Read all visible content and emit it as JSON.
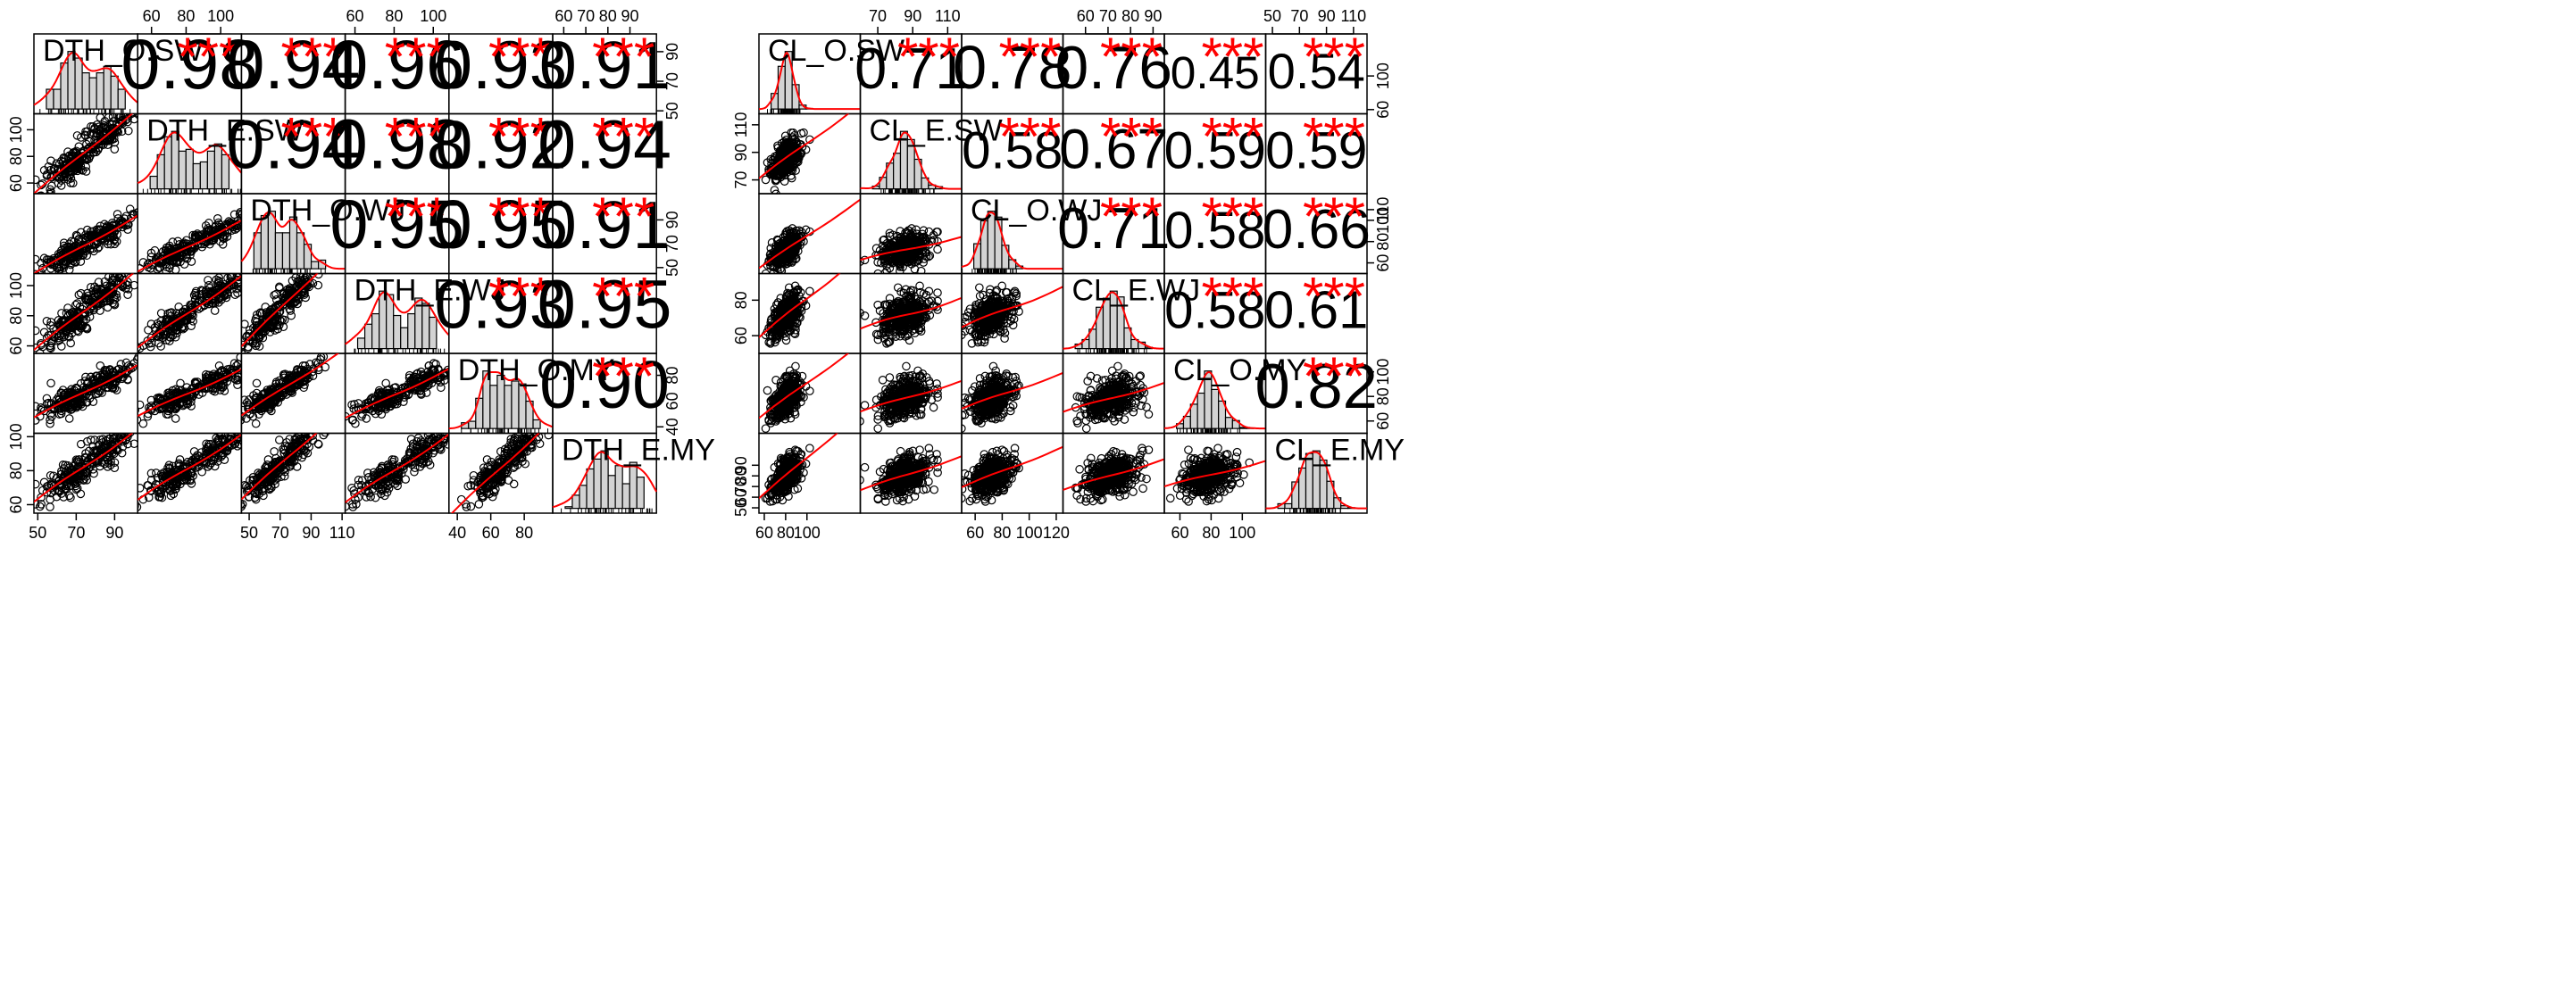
{
  "chart_data": [
    {
      "type": "scatter",
      "title": "",
      "variables": [
        "DTH_O.SW",
        "DTH_E.SW",
        "DTH_O.WJ",
        "DTH_E.WJ",
        "DTH_O.MY",
        "DTH_E.MY"
      ],
      "correlations": [
        [
          1,
          0.98,
          0.94,
          0.96,
          0.93,
          0.91
        ],
        [
          0.98,
          1,
          0.94,
          0.98,
          0.92,
          0.94
        ],
        [
          0.94,
          0.94,
          1,
          0.95,
          0.95,
          0.91
        ],
        [
          0.96,
          0.98,
          0.95,
          1,
          0.93,
          0.95
        ],
        [
          0.93,
          0.92,
          0.95,
          0.93,
          1,
          0.9
        ],
        [
          0.91,
          0.94,
          0.91,
          0.95,
          0.9,
          1
        ]
      ],
      "significance": "***",
      "ranges": [
        [
          48,
          102
        ],
        [
          52,
          112
        ],
        [
          45,
          112
        ],
        [
          55,
          108
        ],
        [
          35,
          97
        ],
        [
          55,
          102
        ]
      ],
      "ticks": [
        [
          50,
          70,
          90
        ],
        [
          60,
          80,
          100
        ],
        [
          50,
          70,
          90,
          110
        ],
        [
          60,
          80,
          100
        ],
        [
          40,
          60,
          80
        ],
        [
          60,
          80,
          100
        ]
      ],
      "top_axis_ticks": [
        [],
        [
          60,
          80,
          100
        ],
        [],
        [
          60,
          80,
          100
        ],
        [],
        [
          60,
          70,
          80,
          90
        ]
      ],
      "bottom_axis_ticks": [
        [
          50,
          70,
          90
        ],
        [],
        [
          50,
          70,
          90,
          110
        ],
        [],
        [
          40,
          60,
          80
        ],
        []
      ],
      "left_axis_ticks": [
        [],
        [
          60,
          80,
          100
        ],
        [],
        [
          60,
          80,
          100
        ],
        [],
        [
          60,
          80,
          100
        ]
      ],
      "right_axis_ticks": [
        [
          50,
          70,
          90
        ],
        [],
        [
          50,
          70,
          90
        ],
        [],
        [
          40,
          60,
          80
        ],
        []
      ],
      "distributions": [
        {
          "mean": 76,
          "sd": 10,
          "bimodal": [
            66,
            84
          ]
        },
        {
          "mean": 85,
          "sd": 13,
          "bimodal": [
            70,
            93
          ]
        },
        {
          "mean": 70,
          "sd": 10,
          "bimodal": [
            58,
            76
          ]
        },
        {
          "mean": 85,
          "sd": 11,
          "bimodal": [
            73,
            92
          ]
        },
        {
          "mean": 68,
          "sd": 9,
          "bimodal": [
            60,
            72
          ]
        },
        {
          "mean": 84,
          "sd": 9,
          "bimodal": [
            72,
            88
          ]
        }
      ],
      "grid": false,
      "legend": "none"
    },
    {
      "type": "scatter",
      "title": "",
      "variables": [
        "CL_O.SW",
        "CL_E.SW",
        "CL_O.WJ",
        "CL_E.WJ",
        "CL_O.MY",
        "CL_E.MY"
      ],
      "correlations": [
        [
          1,
          0.71,
          0.78,
          0.76,
          0.45,
          0.54
        ],
        [
          0.71,
          1,
          0.58,
          0.67,
          0.59,
          0.59
        ],
        [
          0.78,
          0.58,
          1,
          0.71,
          0.58,
          0.66
        ],
        [
          0.76,
          0.67,
          0.71,
          1,
          0.58,
          0.61
        ],
        [
          0.45,
          0.59,
          0.58,
          0.58,
          1,
          0.82
        ],
        [
          0.54,
          0.59,
          0.66,
          0.61,
          0.82,
          1
        ]
      ],
      "significance": "***",
      "ranges": [
        [
          55,
          150
        ],
        [
          60,
          118
        ],
        [
          50,
          125
        ],
        [
          50,
          95
        ],
        [
          50,
          115
        ],
        [
          45,
          120
        ]
      ],
      "ticks": [
        [
          60,
          80,
          100
        ],
        [
          70,
          90,
          110
        ],
        [
          60,
          80,
          100,
          120
        ],
        [
          60,
          70,
          80,
          90
        ],
        [
          60,
          80,
          100
        ],
        [
          50,
          70,
          90,
          110
        ]
      ],
      "top_axis_ticks": [
        [],
        [
          70,
          90,
          110
        ],
        [],
        [
          60,
          70,
          80,
          90
        ],
        [],
        [
          50,
          70,
          90,
          110
        ]
      ],
      "bottom_axis_ticks": [
        [
          60,
          80,
          100
        ],
        [],
        [
          60,
          80,
          100,
          120
        ],
        [],
        [
          60,
          80,
          100
        ],
        []
      ],
      "left_axis_ticks": [
        [],
        [
          70,
          90,
          110
        ],
        [],
        [
          60,
          80
        ],
        [],
        [
          50,
          60,
          70,
          80,
          90
        ]
      ],
      "right_axis_ticks": [
        [
          60,
          100
        ],
        [],
        [
          60,
          80,
          100,
          110
        ],
        [],
        [
          60,
          80,
          100
        ],
        []
      ],
      "distributions": [
        {
          "mean": 80,
          "sd": 7
        },
        {
          "mean": 85,
          "sd": 7
        },
        {
          "mean": 72,
          "sd": 8
        },
        {
          "mean": 71,
          "sd": 6
        },
        {
          "mean": 78,
          "sd": 9
        },
        {
          "mean": 80,
          "sd": 9
        }
      ],
      "grid": false,
      "legend": "none"
    }
  ]
}
